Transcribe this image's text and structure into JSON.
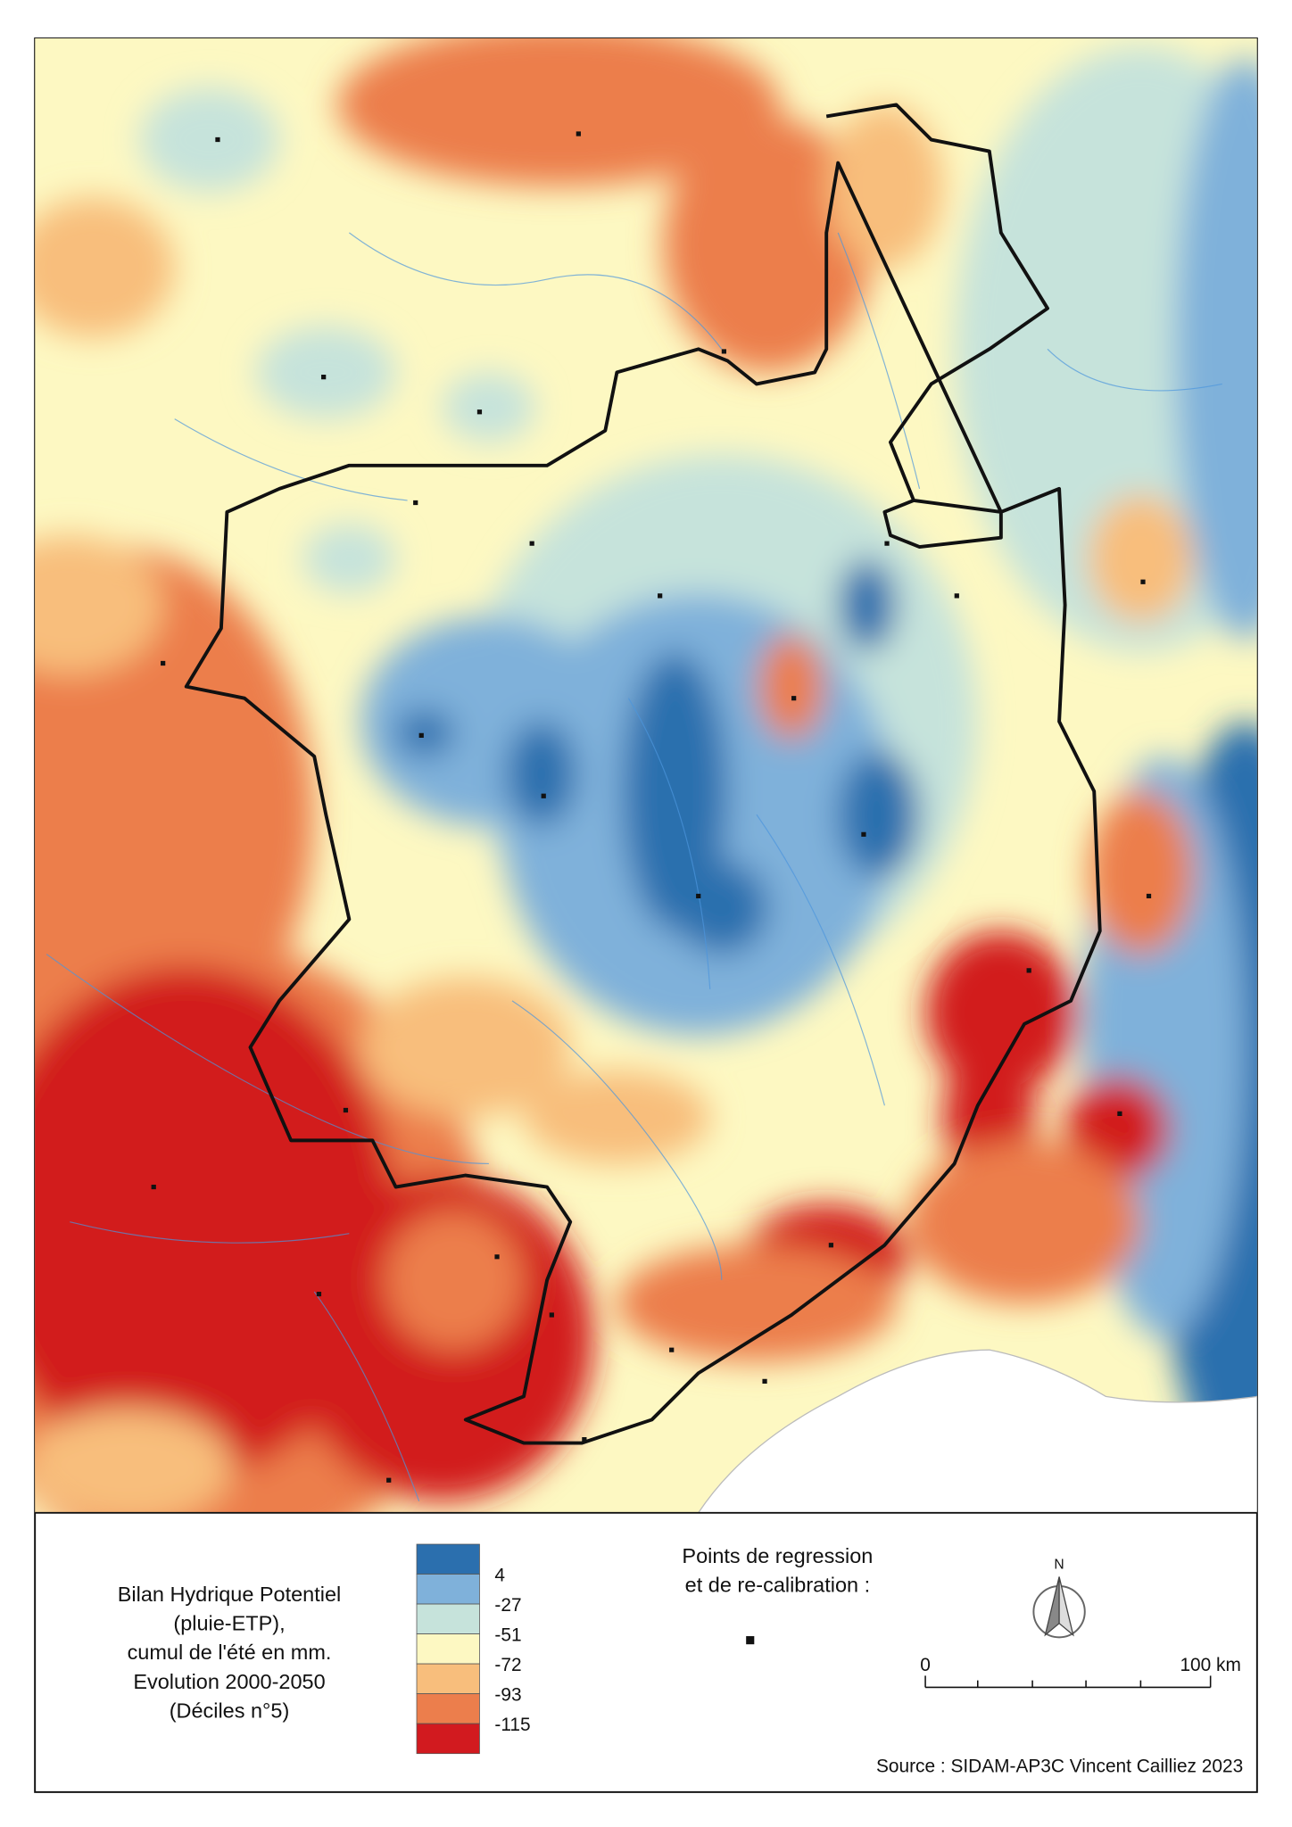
{
  "legend": {
    "title": [
      "Bilan Hydrique Potentiel",
      "(pluie-ETP),",
      "cumul de l'été en mm.",
      "Evolution 2000-2050",
      "(Déciles n°5)"
    ],
    "colors": [
      "#2b6fae",
      "#7fb1da",
      "#c6e3db",
      "#fdf8c2",
      "#f8be7c",
      "#ec7e4c",
      "#d21a1f"
    ],
    "breaks": [
      4,
      -27,
      -51,
      -72,
      -93,
      -115
    ]
  },
  "points_legend": {
    "title": [
      "Points de regression",
      "et de re-calibration :"
    ]
  },
  "north": "N",
  "scale_bar": {
    "start": "0",
    "end": "100 km"
  },
  "source": "Source : SIDAM-AP3C Vincent Cailliez 2023"
}
